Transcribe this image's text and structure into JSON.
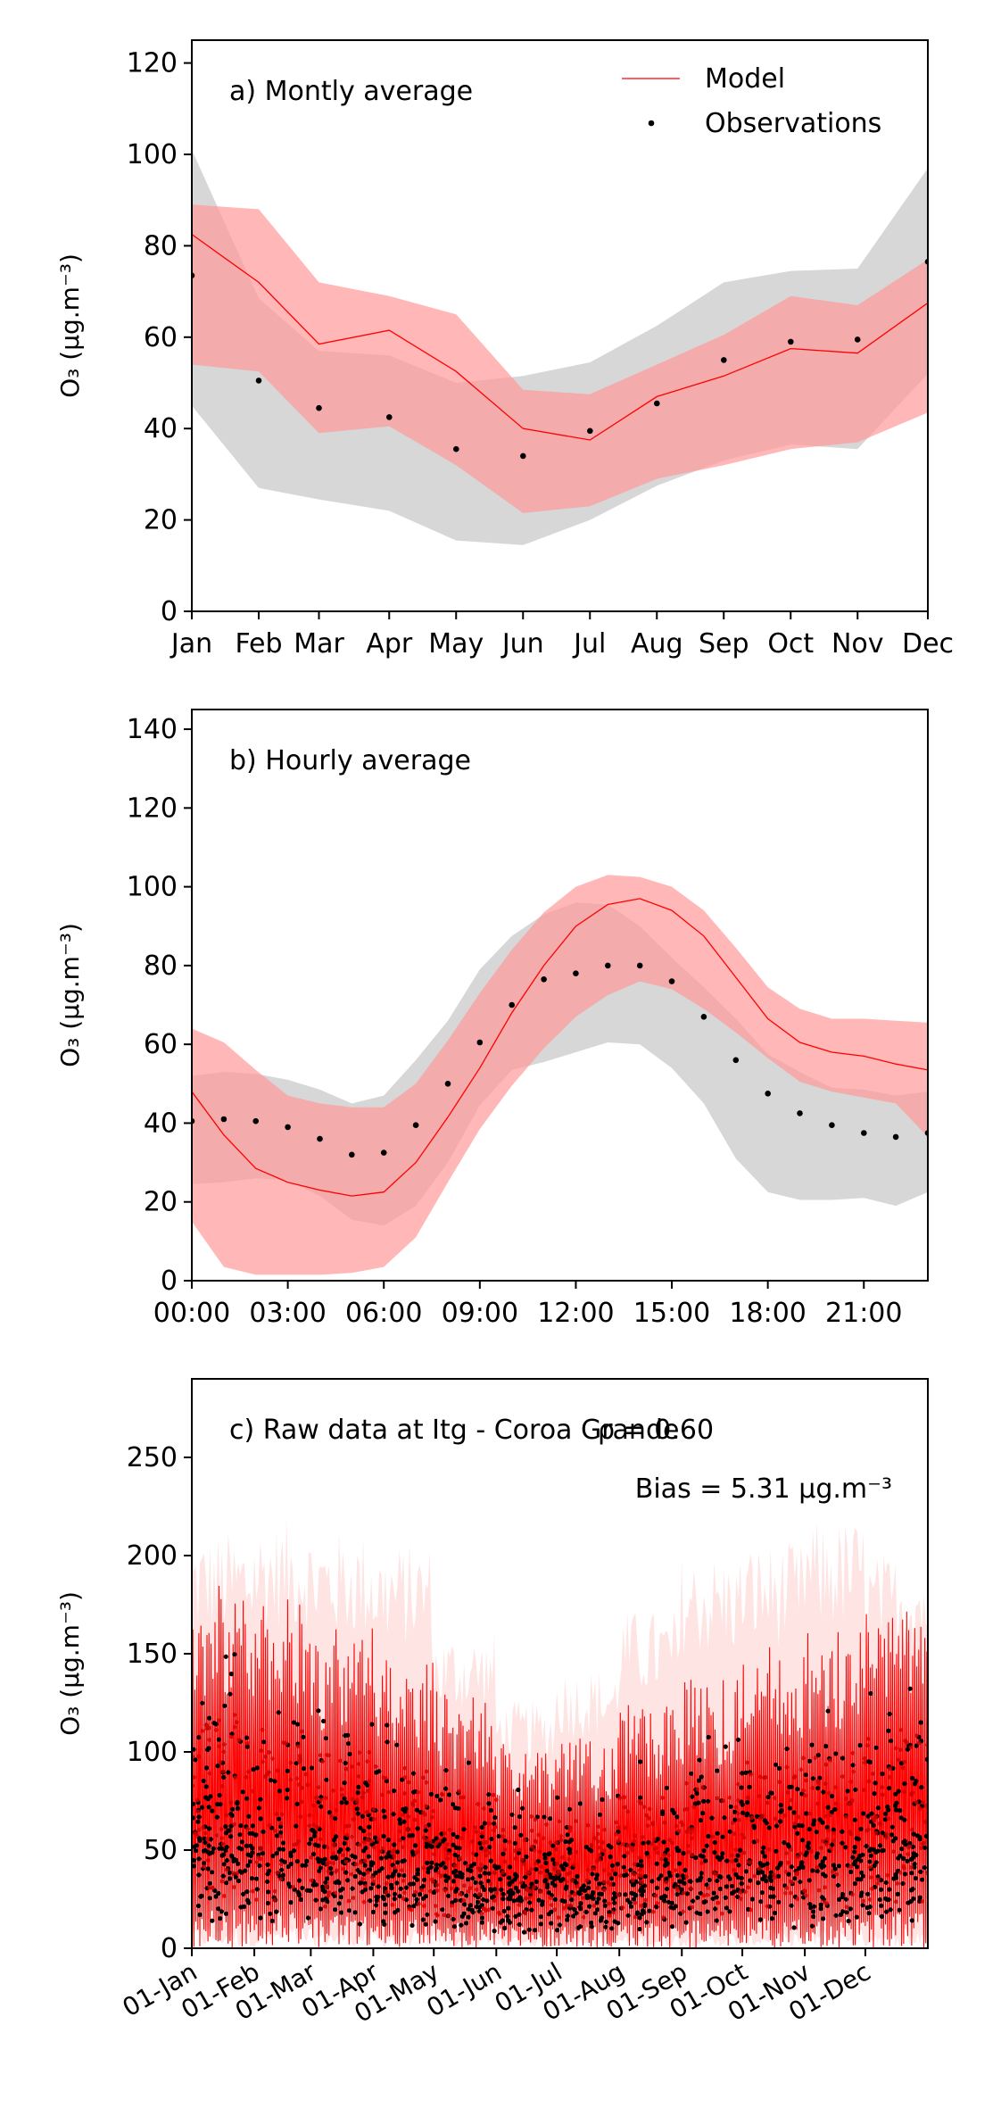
{
  "chart_data": [
    {
      "type": "line",
      "panel_label": "a) Montly average",
      "ylabel": "O₃ (μg.m⁻³)",
      "ylim": [
        0,
        125
      ],
      "yticks": [
        0,
        20,
        40,
        60,
        80,
        100,
        120
      ],
      "xlim": [
        0,
        11
      ],
      "x": [
        0,
        1,
        2,
        3,
        4,
        5,
        6,
        7,
        8,
        9,
        10,
        11
      ],
      "xticks": [
        0,
        1,
        1.9,
        2.95,
        3.95,
        4.95,
        5.95,
        6.95,
        7.95,
        8.95,
        9.95,
        11
      ],
      "xtick_labels": [
        "Jan",
        "Feb",
        "Mar",
        "Apr",
        "May",
        "Jun",
        "Jul",
        "Aug",
        "Sep",
        "Oct",
        "Nov",
        "Dec"
      ],
      "legend": {
        "placement": "top-right",
        "entries": [
          "Model",
          "Observations"
        ]
      },
      "series": [
        {
          "name": "Model",
          "kind": "line",
          "color": "#ff0000",
          "x": [
            0,
            1,
            1.9,
            2.95,
            3.95,
            4.95,
            5.95,
            6.95,
            7.95,
            8.95,
            9.95,
            11
          ],
          "values": [
            82.5,
            72,
            58.5,
            61.5,
            52.5,
            40,
            37.5,
            47,
            51.5,
            57.5,
            56.5,
            67.5
          ]
        },
        {
          "name": "Model range",
          "kind": "band",
          "color": "#ff9999",
          "x": [
            0,
            1,
            1.9,
            2.95,
            3.95,
            4.95,
            5.95,
            6.95,
            7.95,
            8.95,
            9.95,
            11
          ],
          "low": [
            54,
            52.5,
            39,
            40.5,
            32,
            21.5,
            23,
            29,
            32,
            35.5,
            37,
            43.5
          ],
          "high": [
            89,
            88,
            72,
            69,
            65,
            48.5,
            47.5,
            54,
            60.5,
            69,
            67,
            77
          ]
        },
        {
          "name": "Observations range",
          "kind": "band",
          "color": "#bfbfbf",
          "x": [
            0,
            1,
            1.9,
            2.95,
            3.95,
            4.95,
            5.95,
            6.95,
            7.95,
            8.95,
            9.95,
            11
          ],
          "low": [
            45,
            27,
            24.5,
            22,
            15.5,
            14.5,
            20,
            27.5,
            33,
            36.5,
            35.5,
            52
          ],
          "high": [
            101,
            68.5,
            57,
            56,
            50,
            51.5,
            54.5,
            62.5,
            72,
            74.5,
            75,
            97
          ]
        },
        {
          "name": "Observations",
          "kind": "scatter",
          "color": "#000000",
          "x": [
            0,
            1,
            1.9,
            2.95,
            3.95,
            4.95,
            5.95,
            6.95,
            7.95,
            8.95,
            9.95,
            11
          ],
          "values": [
            73.5,
            50.5,
            44.5,
            42.5,
            35.5,
            34,
            39.5,
            45.5,
            55,
            59,
            59.5,
            76.5
          ]
        }
      ]
    },
    {
      "type": "line",
      "panel_label": "b) Hourly average",
      "ylabel": "O₃ (μg.m⁻³)",
      "ylim": [
        0,
        145
      ],
      "yticks": [
        0,
        20,
        40,
        60,
        80,
        100,
        120,
        140
      ],
      "xlim": [
        0,
        23
      ],
      "xticks": [
        0,
        3,
        6,
        9,
        12,
        15,
        18,
        21
      ],
      "xtick_labels": [
        "00:00",
        "03:00",
        "06:00",
        "09:00",
        "12:00",
        "15:00",
        "18:00",
        "21:00"
      ],
      "x": [
        0,
        1,
        2,
        3,
        4,
        5,
        6,
        7,
        8,
        9,
        10,
        11,
        12,
        13,
        14,
        15,
        16,
        17,
        18,
        19,
        20,
        21,
        22,
        23
      ],
      "series": [
        {
          "name": "Model",
          "kind": "line",
          "color": "#ff0000",
          "values": [
            48,
            37,
            28.5,
            25,
            23,
            21.5,
            22.5,
            30,
            41.5,
            54,
            68,
            80,
            90,
            95.5,
            97,
            94,
            87.5,
            77,
            66.5,
            60.5,
            58,
            57,
            55,
            53.5
          ]
        },
        {
          "name": "Model range",
          "kind": "band",
          "color": "#ff9999",
          "low": [
            15,
            3.5,
            1.5,
            1.5,
            1.5,
            2,
            3.5,
            11,
            25,
            38.5,
            49.5,
            59,
            67,
            72.5,
            76,
            74,
            69,
            63,
            56.5,
            50.5,
            48,
            46.5,
            45,
            36.5
          ],
          "high": [
            64,
            60.5,
            53.5,
            47,
            45,
            44,
            44,
            50,
            61,
            73,
            84,
            93.5,
            100,
            103,
            102.5,
            100,
            94,
            84.5,
            74.5,
            69,
            66.5,
            66.5,
            66,
            65.5
          ]
        },
        {
          "name": "Observations range",
          "kind": "band",
          "color": "#bfbfbf",
          "low": [
            24.5,
            25,
            26,
            25.5,
            21.5,
            15.5,
            14,
            19,
            30,
            44.5,
            53.5,
            55.5,
            58,
            60.5,
            60,
            54,
            45,
            31,
            22.5,
            20.5,
            20.5,
            21,
            19,
            22.5
          ],
          "high": [
            52,
            53,
            52.5,
            51,
            48.5,
            45,
            47,
            56,
            66,
            79,
            87.5,
            93,
            96,
            95.5,
            90,
            82,
            74.5,
            66.5,
            57.5,
            53,
            49,
            48.5,
            47,
            48
          ]
        },
        {
          "name": "Observations",
          "kind": "scatter",
          "color": "#000000",
          "values": [
            40.5,
            41,
            40.5,
            39,
            36,
            32,
            32.5,
            39.5,
            50,
            60.5,
            70,
            76.5,
            78,
            80,
            80,
            76,
            67,
            56,
            47.5,
            42.5,
            39.5,
            37.5,
            36.5,
            37.5
          ]
        }
      ]
    },
    {
      "type": "line",
      "panel_label": "c) Raw data at Itg - Coroa Grande",
      "annotations": [
        "ρ = 0.60",
        "Bias = 5.31 μg.m⁻³"
      ],
      "ylabel": "O₃ (μg.m⁻³)",
      "ylim": [
        0,
        290
      ],
      "yticks": [
        0,
        50,
        100,
        150,
        200,
        250
      ],
      "xlim": [
        0,
        365
      ],
      "xticks": [
        0,
        31,
        59,
        90,
        120,
        151,
        181,
        212,
        243,
        273,
        304,
        334
      ],
      "xtick_labels": [
        "01-Jan",
        "01-Feb",
        "01-Mar",
        "01-Apr",
        "01-May",
        "01-Jun",
        "01-Jul",
        "01-Aug",
        "01-Sep",
        "01-Oct",
        "01-Nov",
        "01-Dec"
      ],
      "series_names": [
        "Model",
        "Observations"
      ],
      "colors": {
        "model": "#ff0000",
        "model_band": "#ffb3b3",
        "observations": "#000000"
      },
      "monthly_mean": [
        80,
        75,
        68,
        62,
        55,
        45,
        45,
        52,
        58,
        65,
        68,
        78
      ],
      "monthly_peak": [
        185,
        190,
        185,
        180,
        140,
        110,
        125,
        150,
        175,
        180,
        190,
        175
      ]
    }
  ]
}
